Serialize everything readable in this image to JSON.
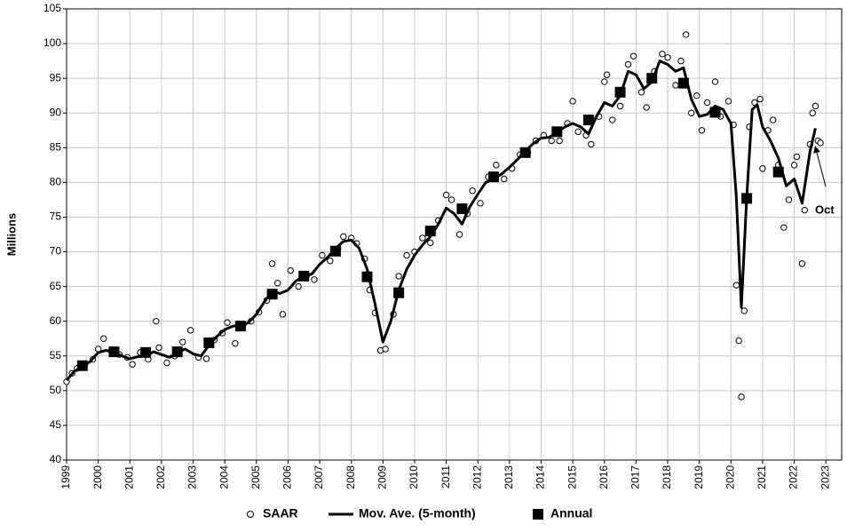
{
  "chart_data": {
    "type": "line",
    "ylabel": "Millions",
    "annotation": "Oct",
    "xlim": [
      1999,
      2023.5
    ],
    "ylim": [
      40,
      105
    ],
    "xticks": [
      1999,
      2000,
      2001,
      2002,
      2003,
      2004,
      2005,
      2006,
      2007,
      2008,
      2009,
      2010,
      2011,
      2012,
      2013,
      2014,
      2015,
      2016,
      2017,
      2018,
      2019,
      2020,
      2021,
      2022,
      2023
    ],
    "yticks": [
      40,
      45,
      50,
      55,
      60,
      65,
      70,
      75,
      80,
      85,
      90,
      95,
      100,
      105
    ],
    "grid": true,
    "legend": "bottom",
    "series": [
      {
        "name": "SAAR",
        "color": "#000000",
        "marker": "circle",
        "x": [
          1999.0,
          1999.17,
          1999.33,
          1999.58,
          1999.83,
          2000.0,
          2000.17,
          2000.42,
          2000.67,
          2000.92,
          2001.08,
          2001.33,
          2001.58,
          2001.83,
          2001.92,
          2002.17,
          2002.42,
          2002.67,
          2002.92,
          2003.17,
          2003.42,
          2003.67,
          2003.92,
          2004.08,
          2004.33,
          2004.58,
          2004.83,
          2005.08,
          2005.33,
          2005.5,
          2005.67,
          2005.83,
          2006.08,
          2006.33,
          2006.58,
          2006.83,
          2007.08,
          2007.33,
          2007.58,
          2007.75,
          2008.0,
          2008.17,
          2008.42,
          2008.58,
          2008.75,
          2008.92,
          2009.08,
          2009.33,
          2009.5,
          2009.75,
          2010.0,
          2010.25,
          2010.5,
          2010.75,
          2011.0,
          2011.17,
          2011.42,
          2011.67,
          2011.83,
          2012.08,
          2012.33,
          2012.58,
          2012.83,
          2013.08,
          2013.33,
          2013.58,
          2013.83,
          2014.08,
          2014.33,
          2014.58,
          2014.83,
          2015.0,
          2015.17,
          2015.42,
          2015.58,
          2015.83,
          2016.0,
          2016.08,
          2016.25,
          2016.5,
          2016.75,
          2016.92,
          2017.17,
          2017.33,
          2017.58,
          2017.83,
          2018.0,
          2018.25,
          2018.42,
          2018.58,
          2018.75,
          2018.92,
          2019.08,
          2019.25,
          2019.5,
          2019.67,
          2019.92,
          2020.08,
          2020.17,
          2020.25,
          2020.33,
          2020.42,
          2020.58,
          2020.75,
          2020.92,
          2021.0,
          2021.17,
          2021.33,
          2021.5,
          2021.67,
          2021.83,
          2022.0,
          2022.08,
          2022.25,
          2022.33,
          2022.5,
          2022.58,
          2022.67,
          2022.75,
          2022.83
        ],
        "values": [
          51.3,
          52.5,
          53.2,
          53.8,
          54.5,
          56.0,
          57.5,
          55.8,
          55.2,
          54.8,
          53.8,
          55.5,
          54.5,
          60.0,
          56.2,
          54.0,
          55.0,
          57.0,
          58.7,
          54.8,
          54.6,
          57.3,
          58.3,
          59.8,
          56.8,
          59.5,
          60.0,
          61.3,
          63.0,
          68.3,
          65.5,
          61.0,
          67.3,
          65.0,
          66.5,
          66.0,
          69.5,
          68.7,
          70.5,
          72.2,
          72.0,
          71.2,
          69.0,
          64.5,
          61.2,
          55.8,
          56.0,
          61.0,
          66.5,
          69.5,
          70.0,
          72.0,
          71.3,
          74.5,
          78.2,
          77.5,
          72.5,
          75.5,
          78.8,
          77.0,
          80.8,
          82.5,
          80.5,
          82.0,
          84.0,
          84.3,
          86.0,
          86.8,
          86.0,
          86.0,
          88.5,
          91.7,
          87.3,
          86.8,
          85.5,
          89.5,
          94.5,
          95.5,
          89.0,
          91.0,
          97.0,
          98.2,
          93.0,
          90.8,
          96.0,
          98.5,
          98.0,
          94.0,
          97.5,
          101.3,
          90.0,
          92.5,
          87.5,
          91.5,
          94.5,
          89.5,
          91.7,
          88.3,
          65.2,
          57.2,
          49.1,
          61.5,
          88.0,
          91.5,
          92.0,
          82.0,
          87.5,
          89.0,
          82.5,
          73.5,
          77.5,
          82.5,
          83.7,
          68.3,
          76.0,
          85.5,
          90.0,
          91.0,
          86.0,
          85.7
        ]
      },
      {
        "name": "Mov. Ave. (5-month)",
        "color": "#000000",
        "marker": "line",
        "x": [
          1999.0,
          1999.25,
          1999.5,
          1999.75,
          2000.0,
          2000.25,
          2000.5,
          2000.75,
          2001.0,
          2001.25,
          2001.5,
          2001.75,
          2002.0,
          2002.25,
          2002.5,
          2002.75,
          2003.0,
          2003.25,
          2003.5,
          2003.75,
          2004.0,
          2004.25,
          2004.5,
          2004.75,
          2005.0,
          2005.25,
          2005.5,
          2005.75,
          2006.0,
          2006.25,
          2006.5,
          2006.75,
          2007.0,
          2007.25,
          2007.5,
          2007.75,
          2008.0,
          2008.25,
          2008.5,
          2008.75,
          2009.0,
          2009.25,
          2009.5,
          2009.75,
          2010.0,
          2010.25,
          2010.5,
          2010.75,
          2011.0,
          2011.25,
          2011.5,
          2011.75,
          2012.0,
          2012.25,
          2012.5,
          2012.75,
          2013.0,
          2013.25,
          2013.5,
          2013.75,
          2014.0,
          2014.25,
          2014.5,
          2014.75,
          2015.0,
          2015.25,
          2015.5,
          2015.75,
          2016.0,
          2016.25,
          2016.5,
          2016.75,
          2017.0,
          2017.25,
          2017.5,
          2017.75,
          2018.0,
          2018.25,
          2018.5,
          2018.75,
          2019.0,
          2019.25,
          2019.5,
          2019.75,
          2020.0,
          2020.17,
          2020.33,
          2020.5,
          2020.67,
          2020.83,
          2021.0,
          2021.25,
          2021.5,
          2021.75,
          2022.0,
          2022.25,
          2022.5,
          2022.67
        ],
        "values": [
          51.5,
          52.8,
          53.5,
          54.2,
          55.5,
          55.8,
          55.5,
          55.0,
          54.6,
          54.9,
          55.0,
          55.6,
          55.2,
          54.8,
          55.5,
          56.0,
          55.3,
          55.0,
          56.5,
          57.8,
          58.8,
          59.3,
          59.4,
          59.8,
          61.0,
          62.8,
          64.3,
          64.0,
          64.5,
          65.8,
          66.5,
          66.8,
          68.2,
          69.2,
          70.5,
          71.5,
          71.7,
          70.5,
          67.5,
          62.5,
          57.0,
          60.0,
          64.5,
          67.5,
          69.5,
          71.0,
          72.2,
          74.0,
          76.3,
          75.5,
          74.0,
          76.5,
          78.3,
          80.0,
          80.5,
          81.2,
          82.2,
          83.3,
          84.5,
          85.6,
          86.4,
          86.5,
          87.2,
          88.0,
          88.5,
          88.0,
          87.0,
          89.5,
          91.5,
          91.0,
          92.5,
          96.0,
          95.5,
          93.5,
          94.5,
          97.5,
          97.0,
          96.0,
          96.5,
          92.0,
          89.5,
          89.8,
          91.0,
          90.5,
          88.5,
          78,
          62,
          78,
          90.5,
          91.2,
          88.0,
          86.0,
          83.5,
          79.5,
          80.5,
          77.0,
          84.5,
          87.8
        ]
      },
      {
        "name": "Annual",
        "color": "#000000",
        "marker": "square",
        "x": [
          1999.5,
          2000.5,
          2001.5,
          2002.5,
          2003.5,
          2004.5,
          2005.5,
          2006.5,
          2007.5,
          2008.5,
          2009.5,
          2010.5,
          2011.5,
          2012.5,
          2013.5,
          2014.5,
          2015.5,
          2016.5,
          2017.5,
          2018.5,
          2019.5,
          2020.5,
          2021.5
        ],
        "values": [
          53.6,
          55.6,
          55.5,
          55.6,
          56.9,
          59.3,
          63.9,
          66.5,
          70.1,
          66.4,
          64.1,
          73.0,
          76.2,
          80.8,
          84.3,
          87.3,
          89.0,
          93.0,
          95.0,
          94.3,
          90.1,
          77.7,
          81.5
        ]
      }
    ]
  }
}
